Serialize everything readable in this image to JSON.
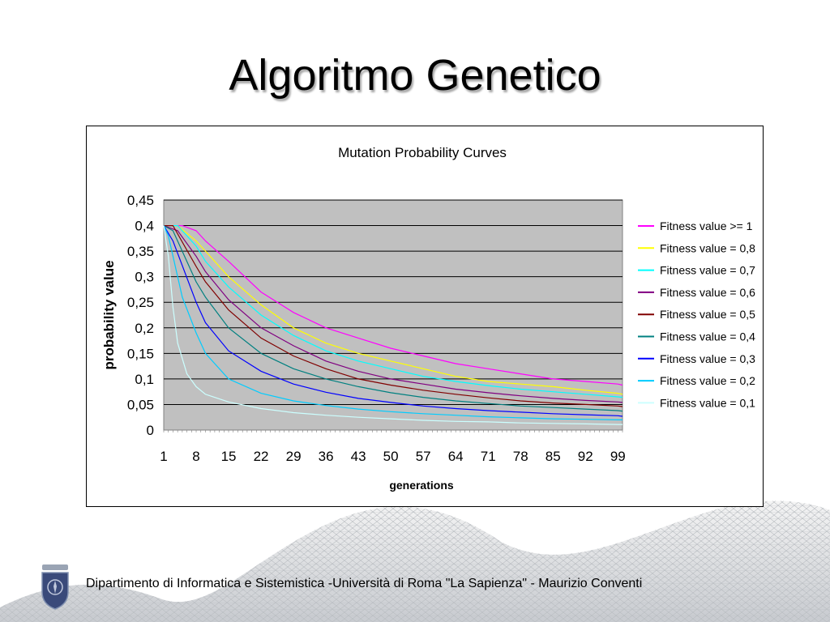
{
  "slide": {
    "title": "Algoritmo Genetico",
    "footer": "Dipartimento di Informatica e Sistemistica -Università di Roma \"La Sapienza\" - Maurizio Conventi"
  },
  "chart_data": {
    "type": "line",
    "title": "Mutation Probability Curves",
    "xlabel": "generations",
    "ylabel": "probability value",
    "x_range": [
      1,
      100
    ],
    "x_tick_labels": [
      "1",
      "8",
      "15",
      "22",
      "29",
      "36",
      "43",
      "50",
      "57",
      "64",
      "71",
      "78",
      "85",
      "92",
      "99"
    ],
    "y_ticks": [
      0,
      0.05,
      0.1,
      0.15,
      0.2,
      0.25,
      0.3,
      0.35,
      0.4,
      0.45
    ],
    "y_tick_labels": [
      "0",
      "0,05",
      "0,1",
      "0,15",
      "0,2",
      "0,25",
      "0,3",
      "0,35",
      "0,4",
      "0,45"
    ],
    "ylim": [
      0,
      0.45
    ],
    "grid": "horizontal",
    "plot_background": "#c0c0c0",
    "legend_position": "right",
    "series": [
      {
        "name": "Fitness value >= 1",
        "color": "#ff00ff",
        "x": [
          1,
          5,
          8,
          10,
          15,
          22,
          29,
          36,
          43,
          50,
          57,
          64,
          71,
          78,
          85,
          92,
          99,
          100
        ],
        "values": [
          0.4,
          0.4,
          0.39,
          0.37,
          0.33,
          0.27,
          0.23,
          0.2,
          0.18,
          0.16,
          0.145,
          0.13,
          0.12,
          0.11,
          0.1,
          0.095,
          0.09,
          0.088
        ]
      },
      {
        "name": "Fitness value = 0,8",
        "color": "#ffff00",
        "x": [
          1,
          4,
          8,
          10,
          15,
          22,
          29,
          36,
          43,
          50,
          57,
          64,
          71,
          78,
          85,
          92,
          99,
          100
        ],
        "values": [
          0.4,
          0.4,
          0.37,
          0.35,
          0.3,
          0.245,
          0.2,
          0.17,
          0.15,
          0.135,
          0.12,
          0.105,
          0.095,
          0.09,
          0.085,
          0.078,
          0.072,
          0.07
        ]
      },
      {
        "name": "Fitness value = 0,7",
        "color": "#00ffff",
        "x": [
          1,
          4,
          8,
          10,
          15,
          22,
          29,
          36,
          43,
          50,
          57,
          64,
          71,
          78,
          85,
          92,
          99,
          100
        ],
        "values": [
          0.4,
          0.4,
          0.36,
          0.33,
          0.28,
          0.225,
          0.185,
          0.155,
          0.135,
          0.12,
          0.105,
          0.095,
          0.087,
          0.08,
          0.075,
          0.07,
          0.065,
          0.064
        ]
      },
      {
        "name": "Fitness value = 0,6",
        "color": "#800080",
        "x": [
          1,
          4,
          8,
          10,
          15,
          22,
          29,
          36,
          43,
          50,
          57,
          64,
          71,
          78,
          85,
          92,
          99,
          100
        ],
        "values": [
          0.4,
          0.39,
          0.34,
          0.31,
          0.255,
          0.2,
          0.165,
          0.135,
          0.115,
          0.1,
          0.09,
          0.08,
          0.073,
          0.067,
          0.062,
          0.058,
          0.055,
          0.054
        ]
      },
      {
        "name": "Fitness value = 0,5",
        "color": "#800000",
        "x": [
          1,
          3,
          8,
          10,
          15,
          22,
          29,
          36,
          43,
          50,
          57,
          64,
          71,
          78,
          85,
          92,
          99,
          100
        ],
        "values": [
          0.4,
          0.4,
          0.32,
          0.29,
          0.235,
          0.18,
          0.145,
          0.12,
          0.1,
          0.088,
          0.078,
          0.07,
          0.063,
          0.057,
          0.053,
          0.05,
          0.047,
          0.046
        ]
      },
      {
        "name": "Fitness value = 0,4",
        "color": "#008080",
        "x": [
          1,
          3,
          8,
          10,
          15,
          22,
          29,
          36,
          43,
          50,
          57,
          64,
          71,
          78,
          85,
          92,
          99,
          100
        ],
        "values": [
          0.4,
          0.39,
          0.29,
          0.26,
          0.2,
          0.15,
          0.12,
          0.1,
          0.085,
          0.073,
          0.064,
          0.057,
          0.052,
          0.047,
          0.044,
          0.041,
          0.038,
          0.037
        ]
      },
      {
        "name": "Fitness value = 0,3",
        "color": "#0000ff",
        "x": [
          1,
          3,
          8,
          10,
          15,
          22,
          29,
          36,
          43,
          50,
          57,
          64,
          71,
          78,
          85,
          92,
          99,
          100
        ],
        "values": [
          0.4,
          0.37,
          0.25,
          0.21,
          0.155,
          0.115,
          0.09,
          0.074,
          0.062,
          0.054,
          0.047,
          0.042,
          0.038,
          0.035,
          0.032,
          0.03,
          0.028,
          0.027
        ]
      },
      {
        "name": "Fitness value = 0,2",
        "color": "#00ccff",
        "x": [
          1,
          2,
          5,
          8,
          10,
          15,
          22,
          29,
          36,
          43,
          50,
          57,
          64,
          71,
          78,
          85,
          92,
          99,
          100
        ],
        "values": [
          0.4,
          0.38,
          0.26,
          0.19,
          0.15,
          0.1,
          0.072,
          0.057,
          0.048,
          0.041,
          0.036,
          0.032,
          0.029,
          0.026,
          0.024,
          0.022,
          0.021,
          0.02,
          0.02
        ]
      },
      {
        "name": "Fitness value = 0,1",
        "color": "#ccffff",
        "x": [
          1,
          2,
          3,
          4,
          6,
          8,
          10,
          15,
          22,
          29,
          36,
          43,
          50,
          57,
          64,
          71,
          78,
          85,
          92,
          99,
          100
        ],
        "values": [
          0.4,
          0.34,
          0.24,
          0.17,
          0.11,
          0.085,
          0.07,
          0.055,
          0.042,
          0.034,
          0.029,
          0.025,
          0.022,
          0.019,
          0.017,
          0.016,
          0.014,
          0.013,
          0.012,
          0.011,
          0.011
        ]
      }
    ]
  }
}
